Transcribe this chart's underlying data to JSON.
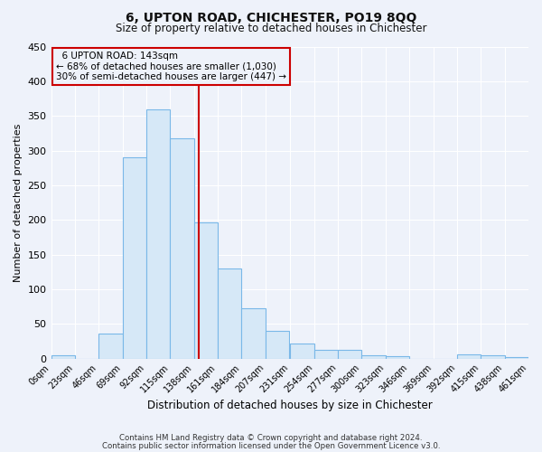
{
  "title": "6, UPTON ROAD, CHICHESTER, PO19 8QQ",
  "subtitle": "Size of property relative to detached houses in Chichester",
  "xlabel": "Distribution of detached houses by size in Chichester",
  "ylabel": "Number of detached properties",
  "bin_edges": [
    0,
    23,
    46,
    69,
    92,
    115,
    138,
    161,
    184,
    207,
    231,
    254,
    277,
    300,
    323,
    346,
    369,
    392,
    415,
    438,
    461
  ],
  "bar_heights": [
    5,
    0,
    36,
    290,
    360,
    317,
    197,
    130,
    72,
    40,
    22,
    13,
    12,
    5,
    3,
    0,
    0,
    6,
    5,
    2
  ],
  "bar_facecolor": "#d6e8f7",
  "bar_edgecolor": "#7ab8e8",
  "vline_x": 143,
  "vline_color": "#cc0000",
  "ylim": [
    0,
    450
  ],
  "yticks": [
    0,
    50,
    100,
    150,
    200,
    250,
    300,
    350,
    400,
    450
  ],
  "annotation_title": "6 UPTON ROAD: 143sqm",
  "annotation_line1": "← 68% of detached houses are smaller (1,030)",
  "annotation_line2": "30% of semi-detached houses are larger (447) →",
  "annotation_box_edgecolor": "#cc0000",
  "background_color": "#eef2fa",
  "grid_color": "#ffffff",
  "footer_line1": "Contains HM Land Registry data © Crown copyright and database right 2024.",
  "footer_line2": "Contains public sector information licensed under the Open Government Licence v3.0."
}
